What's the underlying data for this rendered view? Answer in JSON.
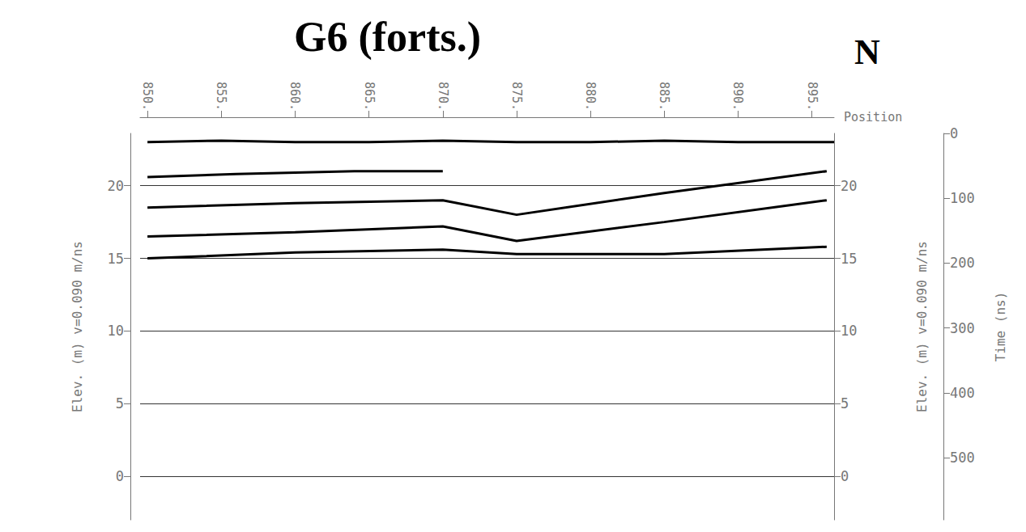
{
  "chart_data": {
    "type": "line",
    "title": "G6 (forts.)",
    "annotations": [
      "N"
    ],
    "xlabel": "Position",
    "ylabel": "Elev. (m) v=0.090 m/ns",
    "y2label": "Time (ns)",
    "xlim": [
      849.5,
      896.5
    ],
    "xticks": [
      {
        "value": 850,
        "label": "850."
      },
      {
        "value": 855,
        "label": "855."
      },
      {
        "value": 860,
        "label": "860."
      },
      {
        "value": 865,
        "label": "865."
      },
      {
        "value": 870,
        "label": "870."
      },
      {
        "value": 875,
        "label": "875."
      },
      {
        "value": 880,
        "label": "880."
      },
      {
        "value": 885,
        "label": "885."
      },
      {
        "value": 890,
        "label": "890."
      },
      {
        "value": 895,
        "label": "895."
      }
    ],
    "ylim": [
      -3,
      23.6
    ],
    "yticks": [
      0,
      5,
      10,
      15,
      20
    ],
    "y2lim": [
      596,
      0
    ],
    "y2ticks": [
      0,
      100,
      200,
      300,
      400,
      500
    ],
    "grid": true,
    "series": [
      {
        "color": "#000000",
        "x": [
          850,
          855,
          860,
          865,
          870,
          875,
          880,
          885,
          890,
          896.5
        ],
        "values": [
          23.0,
          23.1,
          23.0,
          23.0,
          23.1,
          23.0,
          23.0,
          23.1,
          23.0,
          23.0
        ]
      },
      {
        "color": "#000000",
        "x": [
          850,
          856,
          864,
          870
        ],
        "values": [
          20.6,
          20.8,
          21.0,
          21.0
        ]
      },
      {
        "color": "#000000",
        "x": [
          850,
          860,
          870,
          875,
          885,
          896
        ],
        "values": [
          18.5,
          18.8,
          19.0,
          18.0,
          19.5,
          21.0
        ]
      },
      {
        "color": "#000000",
        "x": [
          850,
          860,
          870,
          875,
          885,
          896
        ],
        "values": [
          16.5,
          16.8,
          17.2,
          16.2,
          17.5,
          19.0
        ]
      },
      {
        "color": "#000000",
        "x": [
          850,
          860,
          870,
          875,
          885,
          896
        ],
        "values": [
          15.0,
          15.4,
          15.6,
          15.3,
          15.3,
          15.8
        ]
      }
    ]
  }
}
